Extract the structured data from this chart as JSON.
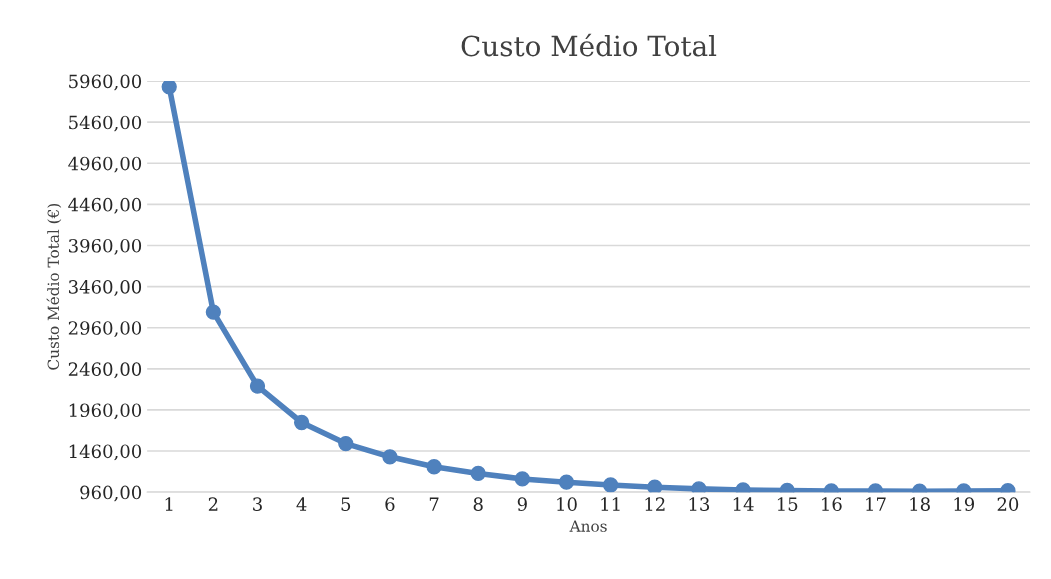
{
  "chart_data": {
    "type": "line",
    "title": "Custo Médio Total",
    "xlabel": "Anos",
    "ylabel": "Custo Médio Total (€)",
    "categories": [
      "1",
      "2",
      "3",
      "4",
      "5",
      "6",
      "7",
      "8",
      "9",
      "10",
      "11",
      "12",
      "13",
      "14",
      "15",
      "16",
      "17",
      "18",
      "19",
      "20"
    ],
    "series": [
      {
        "color": "#4f81bd",
        "values": [
          5890,
          3150,
          2250,
          1807,
          1551,
          1390,
          1269,
          1188,
          1121,
          1081,
          1047,
          1020,
          1000,
          987,
          980,
          975,
          975,
          972,
          975,
          978
        ]
      }
    ],
    "ylim": [
      960,
      5960
    ],
    "yticks": [
      {
        "value": 960,
        "label": "960,00"
      },
      {
        "value": 1460,
        "label": "1460,00"
      },
      {
        "value": 1960,
        "label": "1960,00"
      },
      {
        "value": 2460,
        "label": "2460,00"
      },
      {
        "value": 2960,
        "label": "2960,00"
      },
      {
        "value": 3460,
        "label": "3460,00"
      },
      {
        "value": 3960,
        "label": "3960,00"
      },
      {
        "value": 4460,
        "label": "4460,00"
      },
      {
        "value": 4960,
        "label": "4960,00"
      },
      {
        "value": 5460,
        "label": "5460,00"
      },
      {
        "value": 5960,
        "label": "5960,00"
      }
    ],
    "grid": "y",
    "marker": "circle",
    "line_style": "solid"
  }
}
